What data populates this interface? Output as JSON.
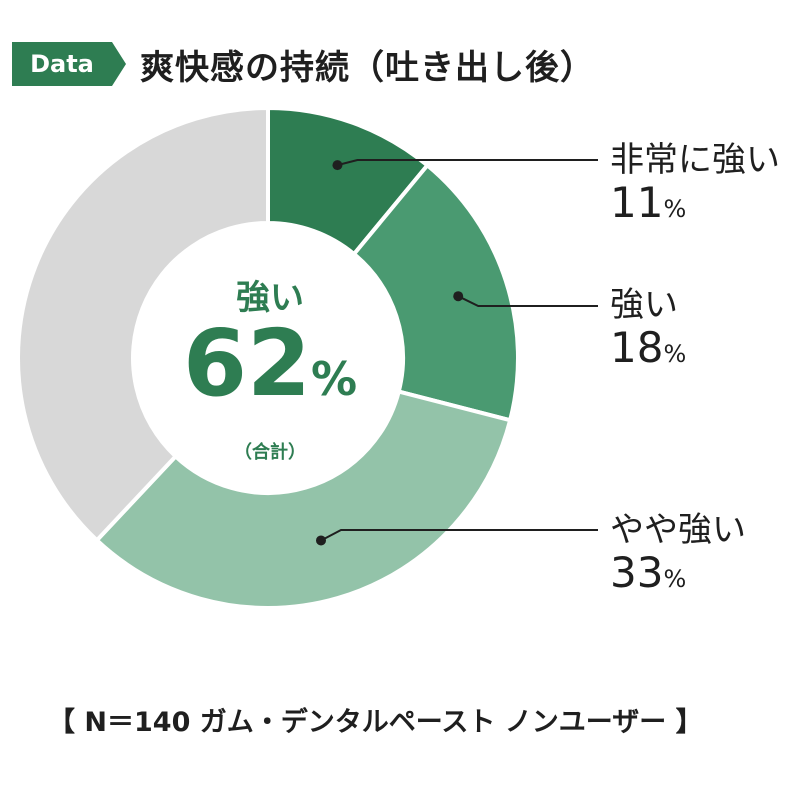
{
  "badge": {
    "label": "Data",
    "color": "#2e7d52"
  },
  "title": "爽快感の持続（吐き出し後）",
  "chart_data": {
    "type": "pie",
    "donut": true,
    "categories": [
      "非常に強い",
      "強い",
      "やや強い",
      ""
    ],
    "values": [
      11,
      18,
      33,
      38
    ],
    "colors": [
      "#2e7d52",
      "#4a9a71",
      "#93c3a9",
      "#d8d8d8"
    ],
    "value_unit": "%",
    "center": {
      "label": "強い",
      "value": "62",
      "unit": "%",
      "note": "（合計）"
    },
    "labels": [
      {
        "name": "非常に強い",
        "value": "11",
        "unit": "%"
      },
      {
        "name": "強い",
        "value": "18",
        "unit": "%"
      },
      {
        "name": "やや強い",
        "value": "33",
        "unit": "%"
      }
    ]
  },
  "footer": "【 N＝140 ガム・デンタルペースト ノンユーザー 】"
}
